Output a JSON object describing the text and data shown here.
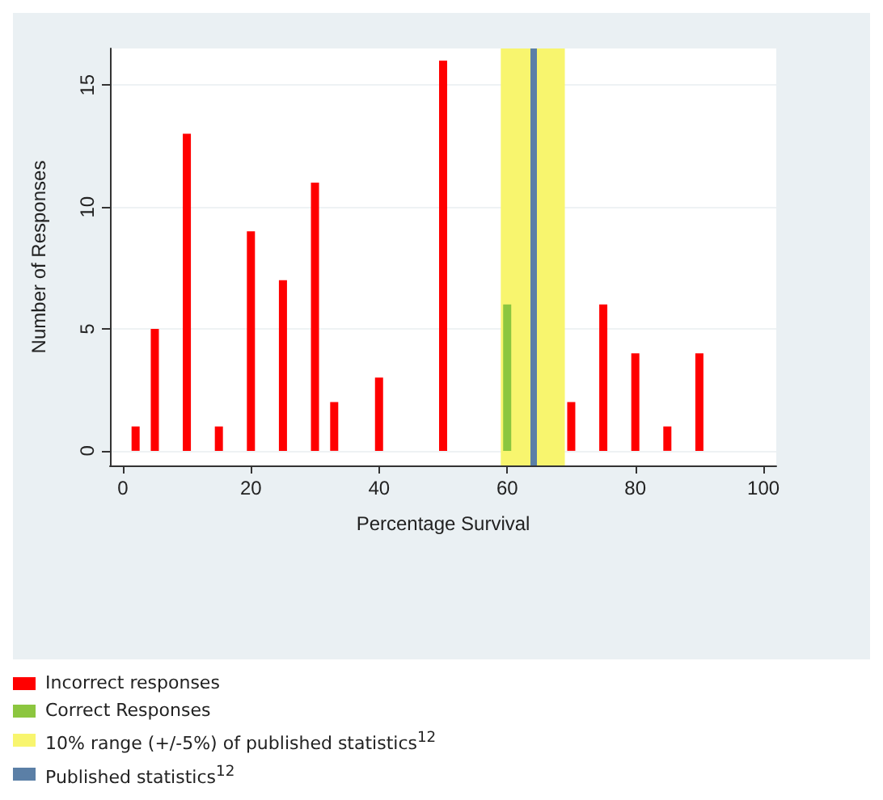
{
  "chart_data": {
    "type": "bar",
    "xlabel": "Percentage Survival",
    "ylabel": "Number of Responses",
    "series": [
      {
        "name": "Incorrect responses",
        "color": "#ff0000",
        "x": [
          2,
          5,
          10,
          15,
          20,
          25,
          30,
          33,
          40,
          50,
          70,
          75,
          80,
          85,
          90
        ],
        "values": [
          1,
          5,
          13,
          1,
          9,
          7,
          11,
          2,
          3,
          16,
          2,
          6,
          4,
          1,
          4
        ]
      },
      {
        "name": "Correct Responses",
        "color": "#8cc63f",
        "x": [
          60
        ],
        "values": [
          6
        ]
      }
    ],
    "bands": [
      {
        "axis": "x",
        "from": 59,
        "to": 69,
        "label": "10% range (+/-5%) of published statistics$^{12}$",
        "color": "#f8f56e"
      }
    ],
    "ref_lines": [
      {
        "axis": "x",
        "value": 64,
        "label": "Published statistics$^{12}$",
        "color": "#5b7fa6"
      }
    ],
    "xlim": [
      -2,
      102
    ],
    "xticks": [
      0,
      20,
      40,
      60,
      80,
      100
    ],
    "ylim": [
      -0.6,
      16.5
    ],
    "yticks": [
      0,
      5,
      10,
      15
    ],
    "grid": "y",
    "legend": "bottom"
  }
}
